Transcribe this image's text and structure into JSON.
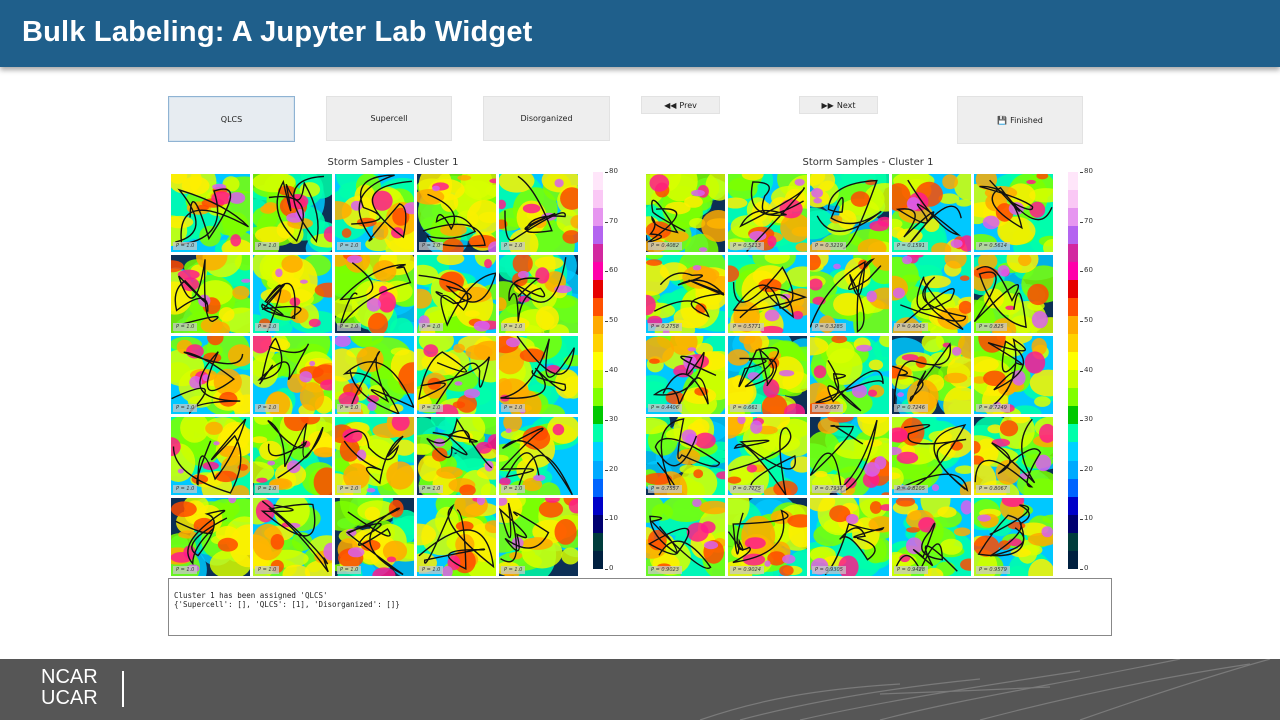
{
  "slide_title": "Bulk Labeling: A Jupyter Lab Widget",
  "buttons": {
    "qlcs": "QLCS",
    "supercell": "Supercell",
    "disorganized": "Disorganized",
    "prev": "Prev",
    "next": "Next",
    "finished": "Finished"
  },
  "icons": {
    "prev": "backward-icon",
    "next": "forward-icon",
    "finished": "save-icon"
  },
  "panels": [
    {
      "title": "Storm Samples - Cluster 1",
      "labels": [
        "P = 1.0",
        "P = 1.0",
        "P = 1.0",
        "P = 1.0",
        "P = 1.0",
        "P = 1.0",
        "P = 1.0",
        "P = 1.0",
        "P = 1.0",
        "P = 1.0",
        "P = 1.0",
        "P = 1.0",
        "P = 1.0",
        "P = 1.0",
        "P = 1.0",
        "P = 1.0",
        "P = 1.0",
        "P = 1.0",
        "P = 1.0",
        "P = 1.0",
        "P = 1.0",
        "P = 1.0",
        "P = 1.0",
        "P = 1.0",
        "P = 1.0"
      ]
    },
    {
      "title": "Storm Samples - Cluster 1",
      "labels": [
        "P = 0.4082",
        "P = 0.5113",
        "P = 0.3219",
        "P = 0.1591",
        "P = 0.5614",
        "P = 0.2758",
        "P = 0.5771",
        "P = 0.3285",
        "P = 0.4043",
        "P = 0.825",
        "P = 0.4406",
        "P = 0.661",
        "P = 0.687",
        "P = 0.7246",
        "P = 0.7249",
        "P = 0.7557",
        "P = 0.7775",
        "P = 0.7937",
        "P = 0.8105",
        "P = 0.8067",
        "P = 0.9023",
        "P = 0.9024",
        "P = 0.9305",
        "P = 0.9428",
        "P = 0.9579"
      ]
    }
  ],
  "colorbar": {
    "ticks": [
      "80",
      "70",
      "60",
      "50",
      "40",
      "30",
      "20",
      "10",
      "0"
    ],
    "colors": [
      "#ffe6fa",
      "#fac8f5",
      "#e696f0",
      "#b464f0",
      "#d228a0",
      "#ff00aa",
      "#e60000",
      "#ff5000",
      "#ffaa00",
      "#ffd200",
      "#ffff00",
      "#c8ff00",
      "#80ff00",
      "#00c800",
      "#00ffaa",
      "#00d2ff",
      "#00aaff",
      "#0064ff",
      "#0000c8",
      "#000070",
      "#003c3c",
      "#002040"
    ]
  },
  "output": {
    "line1": "Cluster 1 has been assigned 'QLCS'",
    "line2": "{'Supercell': [], 'QLCS': [1], 'Disorganized': []}"
  },
  "footer": {
    "logo_line1": "NCAR",
    "logo_line2": "UCAR"
  }
}
